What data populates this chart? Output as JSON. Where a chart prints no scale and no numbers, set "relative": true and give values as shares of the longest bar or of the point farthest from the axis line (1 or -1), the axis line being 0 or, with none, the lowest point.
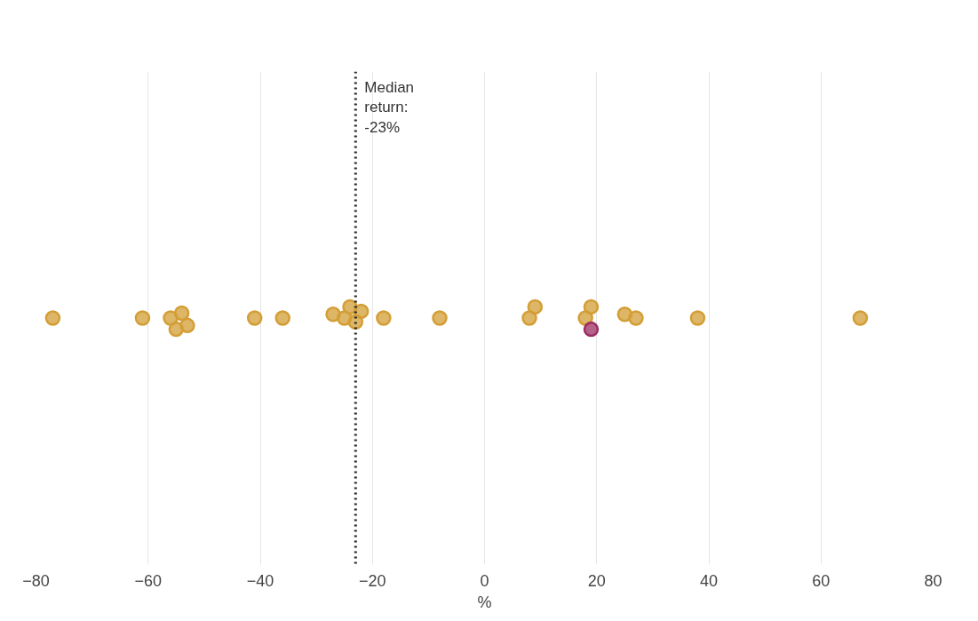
{
  "chart_data": {
    "type": "scatter",
    "xlabel": "%",
    "xlim": [
      -80,
      80
    ],
    "xticks": [
      -80,
      -60,
      -40,
      -20,
      0,
      20,
      40,
      60,
      80
    ],
    "relative": true,
    "tick_labels": "x",
    "grid": "x",
    "marker": "circle",
    "series": [
      {
        "color": "#d39e35",
        "x": [
          -77,
          -61,
          -56,
          -54,
          -55,
          -53,
          -41,
          -36,
          -27,
          -25,
          -24,
          -23,
          -22,
          -18,
          -8,
          8,
          9,
          18,
          19,
          25,
          27,
          38,
          67
        ],
        "values": [
          0.5,
          0.5,
          0.5,
          0.72,
          0,
          0.17,
          0.5,
          0.5,
          0.67,
          0.5,
          1,
          0.33,
          0.8,
          0.5,
          0.5,
          0.5,
          1,
          0.5,
          1,
          0.67,
          0.5,
          0.5,
          0.5
        ]
      },
      {
        "color": "#9b2d63",
        "x": [
          19
        ],
        "values": [
          0
        ]
      }
    ],
    "ref_lines": [
      {
        "axis": "x",
        "value": -23,
        "label": "Median\nreturn:\n-23%",
        "line_style": "dotted",
        "color": "#222222"
      }
    ]
  }
}
